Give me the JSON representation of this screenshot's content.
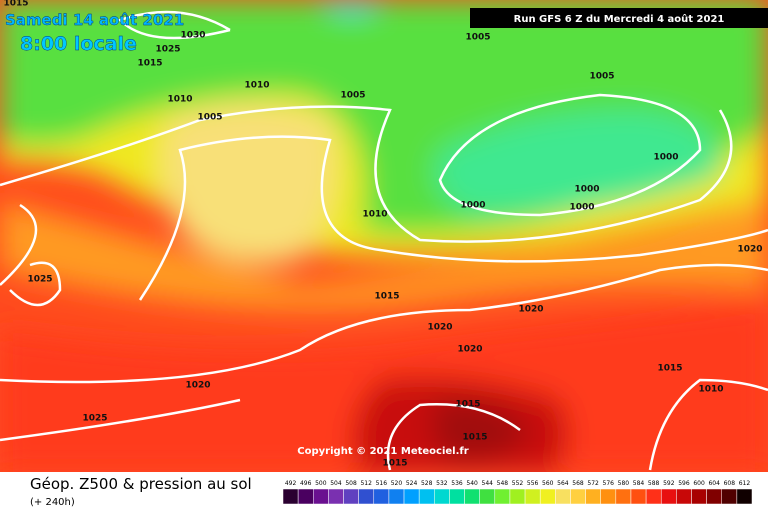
{
  "header": {
    "date": "Samedi 14 août 2021",
    "time": "8:00 locale",
    "run": "Run GFS 6 Z du Mercredi 4 août 2021"
  },
  "map": {
    "copyright": "Copyright © 2021 Meteociel.fr",
    "isobar_labels": [
      "1015",
      "1030",
      "1025",
      "1015",
      "1010",
      "1010",
      "1005",
      "1005",
      "1005",
      "1005",
      "1000",
      "1000",
      "1000",
      "1000",
      "1010",
      "1025",
      "1015",
      "1020",
      "1020",
      "1020",
      "1020",
      "1020",
      "1025",
      "1015",
      "1015",
      "1015",
      "1015",
      "1010"
    ]
  },
  "footer": {
    "title": "Géop. Z500 & pression au sol",
    "lead": "(+ 240h)",
    "scale": [
      492,
      496,
      500,
      504,
      508,
      512,
      516,
      520,
      524,
      528,
      532,
      536,
      540,
      544,
      548,
      552,
      556,
      560,
      564,
      568,
      572,
      576,
      580,
      584,
      588,
      592,
      596,
      600,
      604,
      608,
      612
    ]
  }
}
